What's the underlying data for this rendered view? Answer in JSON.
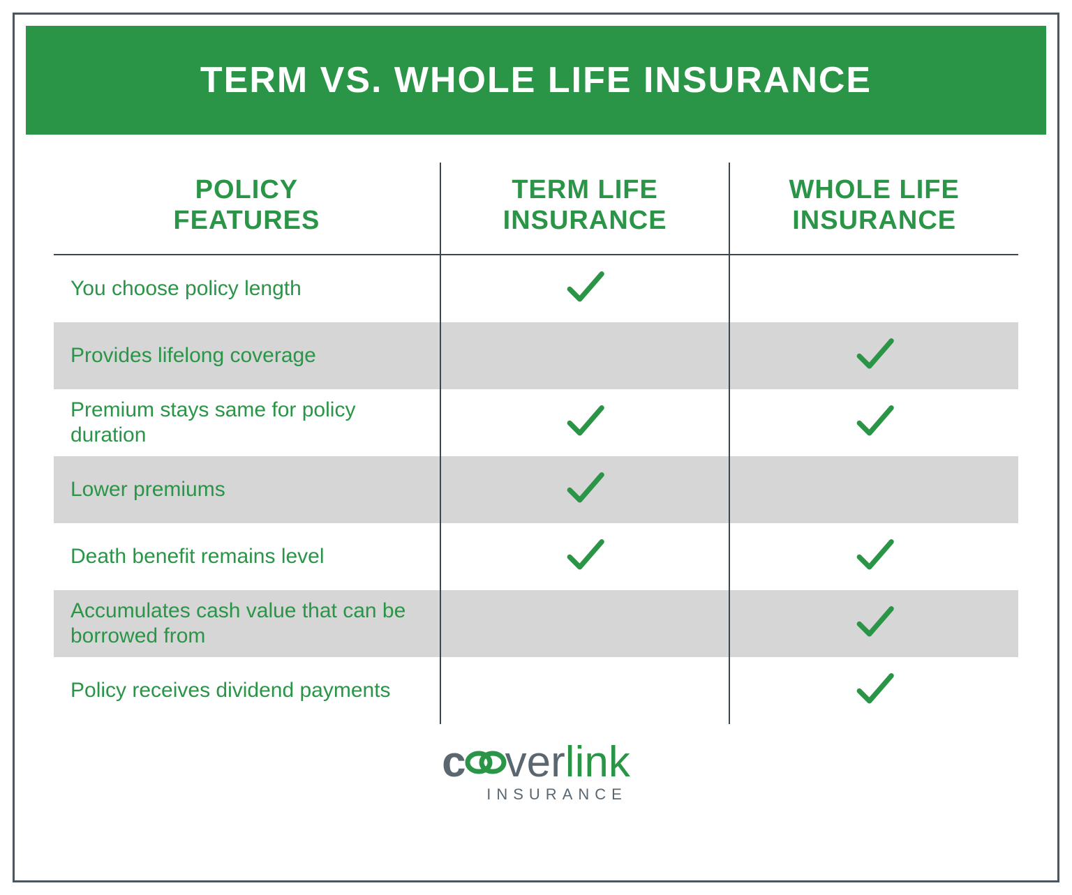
{
  "colors": {
    "brand_green": "#2a9447",
    "text_gray": "#5a6670",
    "border_gray": "#3a4650",
    "row_alt_bg": "#d6d6d6",
    "white": "#ffffff"
  },
  "header": {
    "title": "TERM VS. WHOLE LIFE INSURANCE"
  },
  "table": {
    "columns": {
      "features": "POLICY\nFEATURES",
      "term": "TERM LIFE\nINSURANCE",
      "whole": "WHOLE LIFE\nINSURANCE"
    },
    "rows": [
      {
        "feature": "You choose policy length",
        "term": true,
        "whole": false,
        "alt": false
      },
      {
        "feature": "Provides lifelong coverage",
        "term": false,
        "whole": true,
        "alt": true
      },
      {
        "feature": "Premium stays same for policy duration",
        "term": true,
        "whole": true,
        "alt": false
      },
      {
        "feature": "Lower premiums",
        "term": true,
        "whole": false,
        "alt": true
      },
      {
        "feature": "Death benefit remains level",
        "term": true,
        "whole": true,
        "alt": false
      },
      {
        "feature": "Accumulates cash value that can be borrowed from",
        "term": false,
        "whole": true,
        "alt": true
      },
      {
        "feature": "Policy receives dividend payments",
        "term": false,
        "whole": true,
        "alt": false
      }
    ]
  },
  "logo": {
    "part1": "c",
    "part2": "ver",
    "part3": "link",
    "sub": "INSURANCE"
  }
}
